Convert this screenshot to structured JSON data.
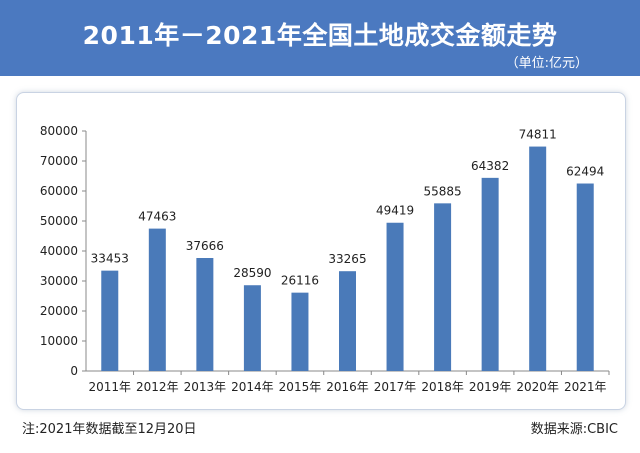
{
  "header": {
    "title": "2011年－2021年全国土地成交金额走势",
    "unit": "（单位:亿元）"
  },
  "footer": {
    "note": "注:2021年数据截至12月20日",
    "source": "数据来源:CBIC"
  },
  "colors": {
    "header_bg": "#4b79c0",
    "bar": "#4a7ab9",
    "text": "#222222",
    "axis": "#888888"
  },
  "chart_data": {
    "type": "bar",
    "title": "2011年－2021年全国土地成交金额走势",
    "ylabel": "",
    "xlabel": "",
    "categories": [
      "2011年",
      "2012年",
      "2013年",
      "2014年",
      "2015年",
      "2016年",
      "2017年",
      "2018年",
      "2019年",
      "2020年",
      "2021年"
    ],
    "values": [
      33453,
      47463,
      37666,
      28590,
      26116,
      33265,
      49419,
      55885,
      64382,
      74811,
      62494
    ],
    "ylim": [
      0,
      80000
    ],
    "yticks": [
      0,
      10000,
      20000,
      30000,
      40000,
      50000,
      60000,
      70000,
      80000
    ],
    "grid": false,
    "legend": "none",
    "data_labels": true
  }
}
